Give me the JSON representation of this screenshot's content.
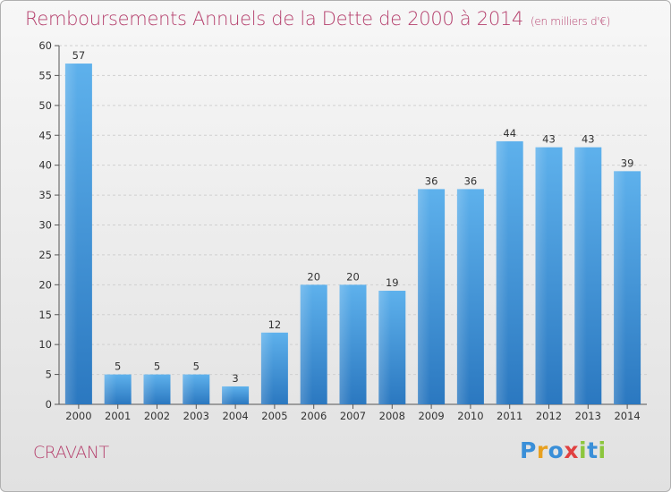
{
  "chart_data": {
    "type": "bar",
    "title": "Remboursements Annuels de la Dette de 2000 à 2014",
    "unit_note": "(en milliers d'€)",
    "categories": [
      "2000",
      "2001",
      "2002",
      "2003",
      "2004",
      "2005",
      "2006",
      "2007",
      "2008",
      "2009",
      "2010",
      "2011",
      "2012",
      "2013",
      "2014"
    ],
    "values": [
      57,
      5,
      5,
      5,
      3,
      12,
      20,
      20,
      19,
      36,
      36,
      44,
      43,
      43,
      39
    ],
    "ylim": [
      0,
      60
    ],
    "yticks": [
      0,
      5,
      10,
      15,
      20,
      25,
      30,
      35,
      40,
      45,
      50,
      55,
      60
    ],
    "grid": true,
    "bar_color": "#4a9fe0",
    "xlabel": "",
    "ylabel": ""
  },
  "commune": "CRAVANT",
  "logo": {
    "letters": [
      {
        "ch": "P",
        "color": "#3a8fd8"
      },
      {
        "ch": "r",
        "color": "#e8a020"
      },
      {
        "ch": "o",
        "color": "#3a8fd8"
      },
      {
        "ch": "x",
        "color": "#e04040"
      },
      {
        "ch": "i",
        "color": "#8cc63e"
      },
      {
        "ch": "t",
        "color": "#3a8fd8"
      },
      {
        "ch": "i",
        "color": "#8cc63e"
      }
    ]
  },
  "colors": {
    "title": "#b5406d",
    "axis": "#444444"
  }
}
